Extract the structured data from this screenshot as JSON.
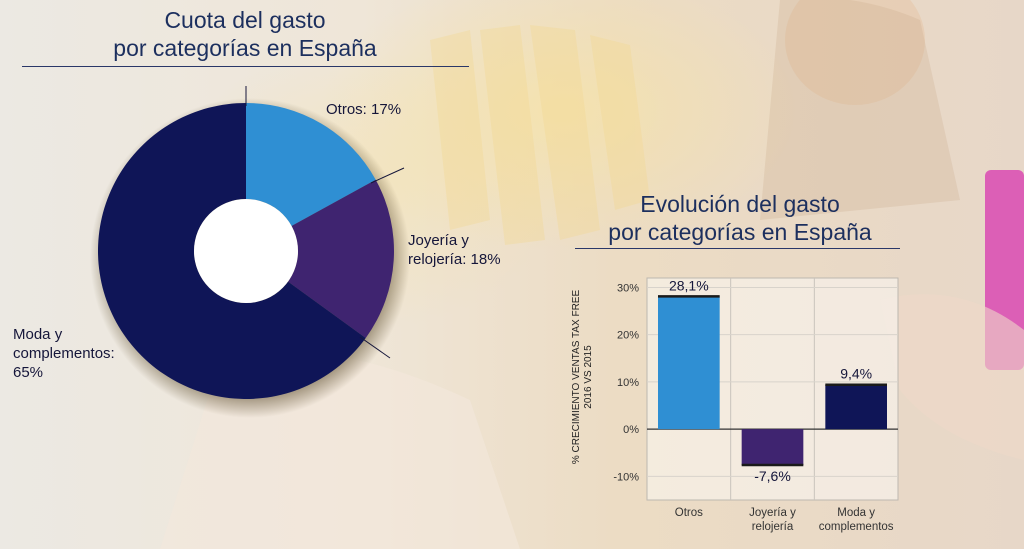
{
  "pie": {
    "title_line1": "Cuota del gasto",
    "title_line2": "por categorías en España",
    "slices": [
      {
        "name": "Otros",
        "label": "Otros: 17%",
        "value": 17,
        "color": "#2f8fd3"
      },
      {
        "name": "Joyería y relojería",
        "label_line1": "Joyería y",
        "label_line2": "relojería: 18%",
        "value": 18,
        "color": "#3f2470"
      },
      {
        "name": "Moda y complementos",
        "label_line1": "Moda y",
        "label_line2": "complementos:",
        "label_line3": "65%",
        "value": 65,
        "color": "#0f1557"
      }
    ]
  },
  "bar": {
    "title_line1": "Evolución del gasto",
    "title_line2": "por categorías en España",
    "ylabel_line1": "% CRECIMIENTO VENTAS TAX FREE",
    "ylabel_line2": "2016 VS 2015"
  },
  "chart_data": [
    {
      "type": "pie",
      "title": "Cuota del gasto por categorías en España",
      "categories": [
        "Otros",
        "Joyería y relojería",
        "Moda y complementos"
      ],
      "values": [
        17,
        18,
        65
      ],
      "colors": [
        "#2f8fd3",
        "#3f2470",
        "#0f1557"
      ],
      "donut": true
    },
    {
      "type": "bar",
      "title": "Evolución del gasto por categorías en España",
      "categories": [
        "Otros",
        "Joyería y relojería",
        "Moda y complementos"
      ],
      "category_labels": [
        [
          "Otros"
        ],
        [
          "Joyería y",
          "relojería"
        ],
        [
          "Moda y",
          "complementos"
        ]
      ],
      "values": [
        28.1,
        -7.6,
        9.4
      ],
      "value_labels": [
        "28,1%",
        "-7,6%",
        "9,4%"
      ],
      "colors": [
        "#2f8fd3",
        "#3f2470",
        "#0f1557"
      ],
      "ylabel": "% CRECIMIENTO VENTAS TAX FREE 2016 VS 2015",
      "ylim": [
        -15,
        32
      ],
      "yticks": [
        -10,
        0,
        10,
        20,
        30
      ],
      "ytick_labels": [
        "-10%",
        "0%",
        "10%",
        "20%",
        "30%"
      ],
      "grid": true
    }
  ]
}
